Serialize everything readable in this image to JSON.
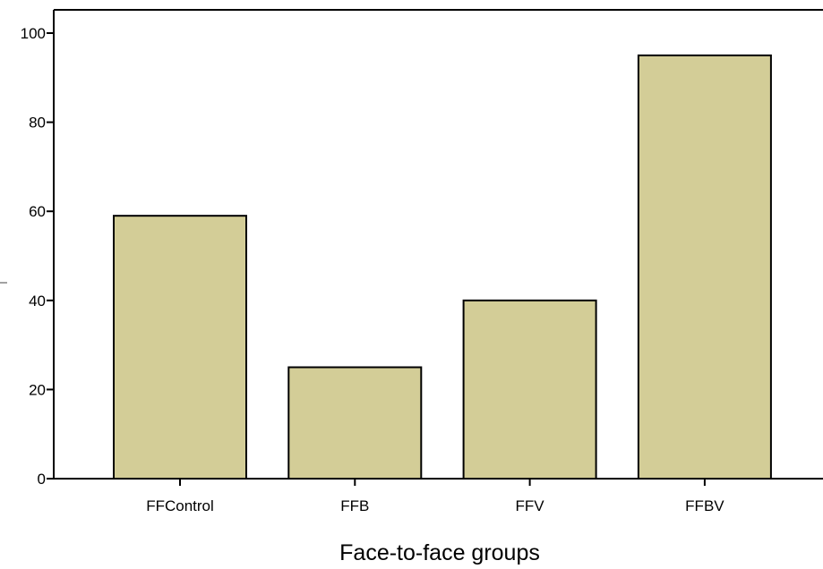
{
  "chart_data": {
    "type": "bar",
    "title": "",
    "xlabel": "Face-to-face groups",
    "ylabel": "",
    "categories": [
      "FFControl",
      "FFB",
      "FFV",
      "FFBV"
    ],
    "values": [
      59,
      25,
      40,
      95
    ],
    "ylim": [
      0,
      100
    ],
    "yticks": [
      0,
      20,
      40,
      60,
      80,
      100
    ],
    "grid": false,
    "legend": "none",
    "colors": {
      "bar_fill": "#d3cd97",
      "bar_stroke": "#000000",
      "axis": "#000000",
      "background": "#ffffff"
    }
  }
}
